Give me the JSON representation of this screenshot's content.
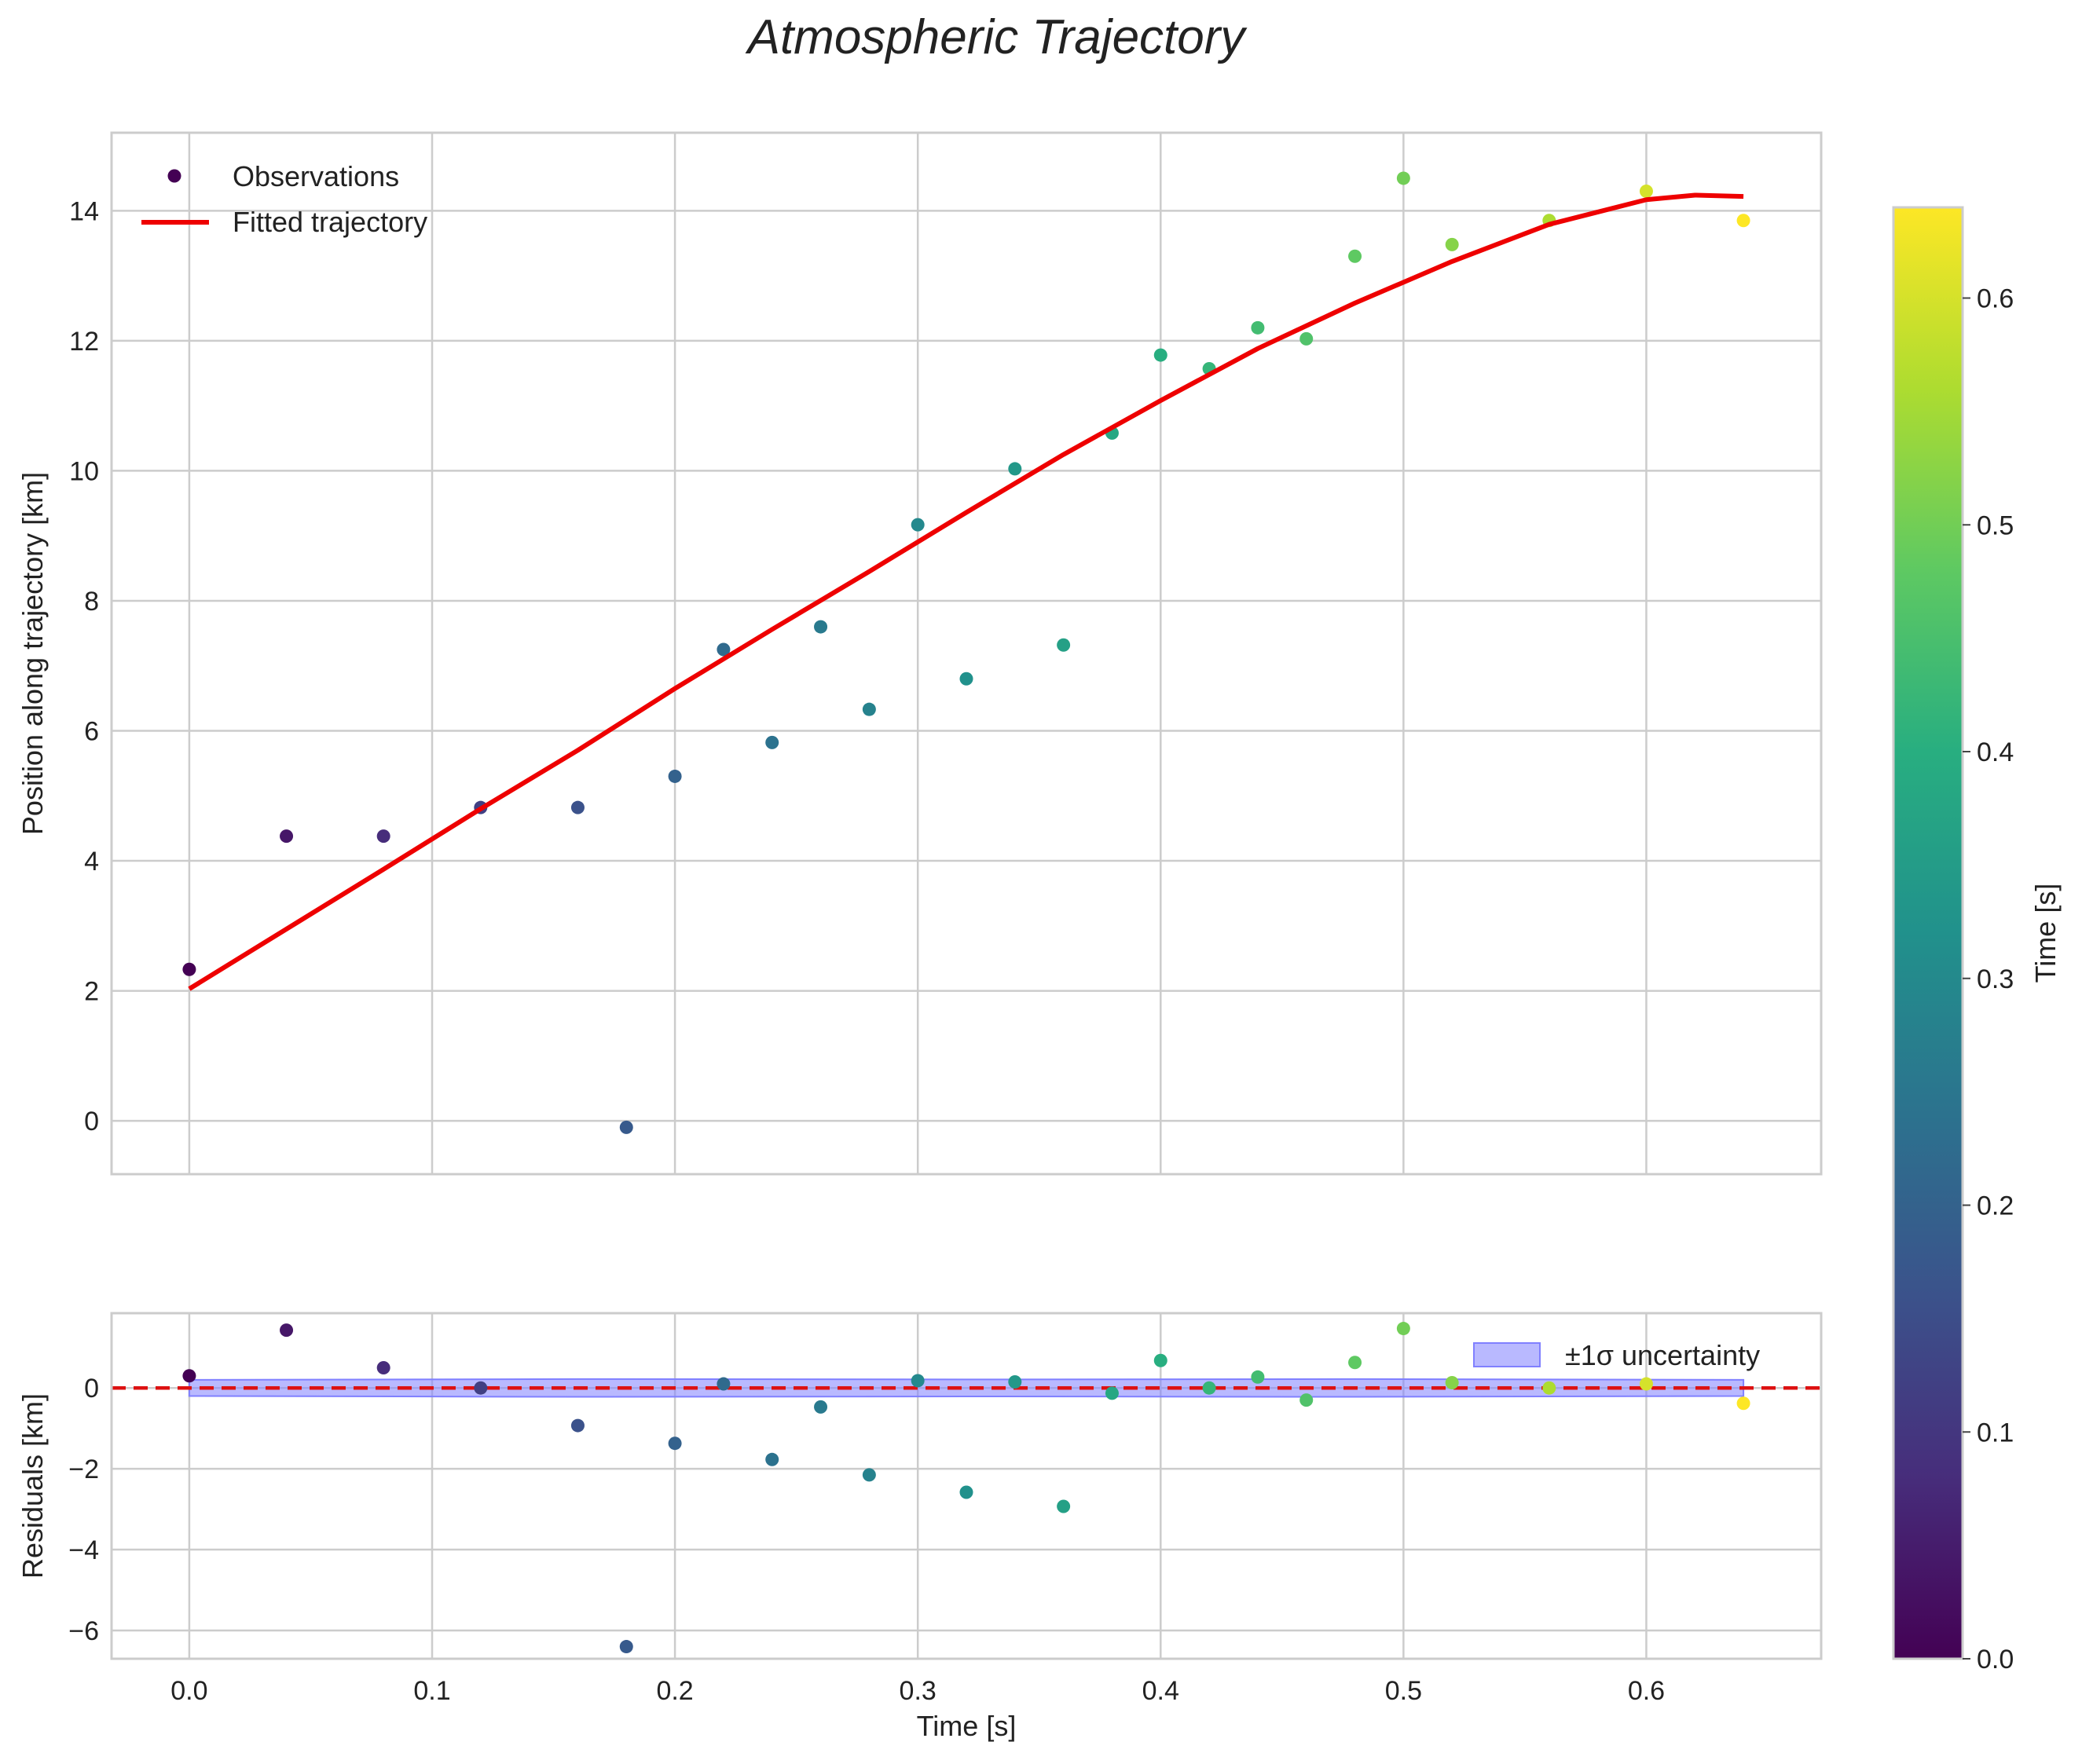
{
  "figure": {
    "title": "Atmospheric Trajectory"
  },
  "colorbar": {
    "label": "Time [s]",
    "range": [
      0,
      0.64
    ],
    "ticks": [
      0.0,
      0.1,
      0.2,
      0.3,
      0.4,
      0.5,
      0.6
    ],
    "tick_labels": [
      "0.0",
      "0.1",
      "0.2",
      "0.3",
      "0.4",
      "0.5",
      "0.6"
    ]
  },
  "chart_data": [
    {
      "type": "scatter",
      "title": "Atmospheric Trajectory",
      "xlabel": "",
      "ylabel": "Position along trajectory [km]",
      "xlim": [
        -0.032,
        0.672
      ],
      "ylim": [
        -0.82,
        15.2
      ],
      "xticks": [
        0.0,
        0.1,
        0.2,
        0.3,
        0.4,
        0.5,
        0.6
      ],
      "yticks": [
        0,
        2,
        4,
        6,
        8,
        10,
        12,
        14
      ],
      "ytick_labels": [
        "0",
        "2",
        "4",
        "6",
        "8",
        "10",
        "12",
        "14"
      ],
      "grid": true,
      "legend": {
        "position": "top-left",
        "entries": [
          "Observations",
          "Fitted trajectory"
        ]
      },
      "series": [
        {
          "name": "Observations",
          "kind": "scatter",
          "colormap": "viridis",
          "x": [
            0.0,
            0.04,
            0.08,
            0.12,
            0.16,
            0.18,
            0.2,
            0.22,
            0.24,
            0.26,
            0.28,
            0.3,
            0.32,
            0.34,
            0.36,
            0.38,
            0.4,
            0.42,
            0.44,
            0.46,
            0.48,
            0.5,
            0.52,
            0.56,
            0.6,
            0.64
          ],
          "y": [
            2.33,
            4.38,
            4.38,
            4.82,
            4.82,
            -0.1,
            5.3,
            7.25,
            5.82,
            7.6,
            6.33,
            9.17,
            6.8,
            10.03,
            7.32,
            10.58,
            11.78,
            11.57,
            12.2,
            12.03,
            13.3,
            14.5,
            13.48,
            13.85,
            14.3,
            13.85
          ]
        },
        {
          "name": "Fitted trajectory",
          "kind": "line",
          "color": "#ee0000",
          "x": [
            0.0,
            0.04,
            0.08,
            0.12,
            0.16,
            0.2,
            0.24,
            0.28,
            0.32,
            0.36,
            0.4,
            0.44,
            0.48,
            0.52,
            0.56,
            0.6,
            0.62,
            0.64
          ],
          "y": [
            2.03,
            2.95,
            3.87,
            4.8,
            5.7,
            6.65,
            7.56,
            8.45,
            9.36,
            10.25,
            11.08,
            11.88,
            12.58,
            13.22,
            13.79,
            14.17,
            14.24,
            14.22
          ]
        }
      ]
    },
    {
      "type": "scatter",
      "title": "",
      "xlabel": "Time [s]",
      "ylabel": "Residuals [km]",
      "xlim": [
        -0.032,
        0.672
      ],
      "ylim": [
        -6.7,
        1.85
      ],
      "xticks": [
        0.0,
        0.1,
        0.2,
        0.3,
        0.4,
        0.5,
        0.6
      ],
      "xtick_labels": [
        "0.0",
        "0.1",
        "0.2",
        "0.3",
        "0.4",
        "0.5",
        "0.6"
      ],
      "yticks": [
        -6,
        -4,
        -2,
        0
      ],
      "ytick_labels": [
        "−6",
        "−4",
        "−2",
        "0"
      ],
      "grid": true,
      "legend": {
        "position": "top-right",
        "entries": [
          "±1σ uncertainty"
        ]
      },
      "zero_line": {
        "y": 0,
        "color": "#dd1111",
        "style": "dashed"
      },
      "series": [
        {
          "name": "Residuals",
          "kind": "scatter",
          "colormap": "viridis",
          "x": [
            0.0,
            0.04,
            0.08,
            0.12,
            0.16,
            0.18,
            0.2,
            0.22,
            0.24,
            0.26,
            0.28,
            0.3,
            0.32,
            0.34,
            0.36,
            0.38,
            0.4,
            0.42,
            0.44,
            0.46,
            0.48,
            0.5,
            0.52,
            0.56,
            0.6,
            0.64
          ],
          "y": [
            0.3,
            1.43,
            0.5,
            0.0,
            -0.93,
            -6.4,
            -1.37,
            0.1,
            -1.77,
            -0.47,
            -2.15,
            0.18,
            -2.58,
            0.15,
            -2.93,
            -0.13,
            0.68,
            0.0,
            0.27,
            -0.3,
            0.63,
            1.47,
            0.13,
            0.0,
            0.1,
            -0.38
          ]
        },
        {
          "name": "±1σ uncertainty",
          "kind": "band",
          "color": "#8080ff",
          "x": [
            0.0,
            0.16,
            0.32,
            0.48,
            0.64
          ],
          "lower": [
            -0.2,
            -0.22,
            -0.21,
            -0.22,
            -0.2
          ],
          "upper": [
            0.2,
            0.22,
            0.21,
            0.22,
            0.2
          ]
        }
      ]
    }
  ]
}
